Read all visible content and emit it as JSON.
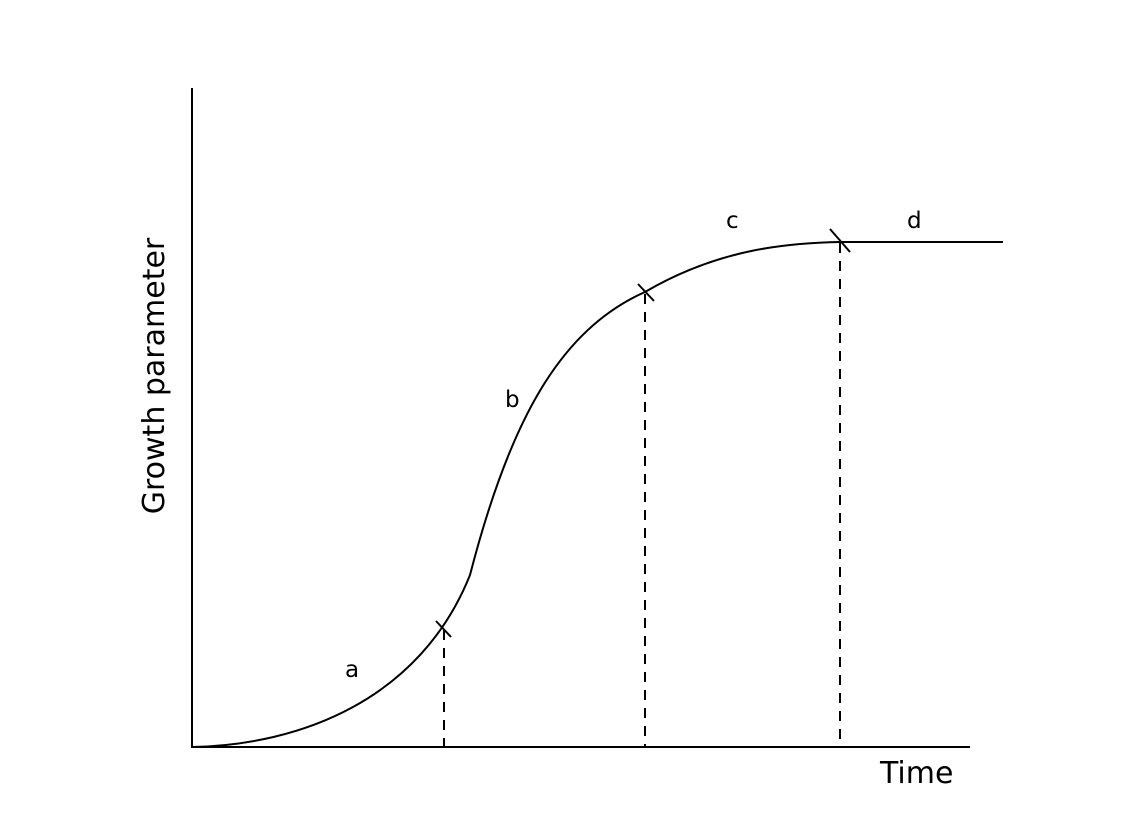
{
  "diagram": {
    "x_axis_label": "Time",
    "y_axis_label": "Growth parameter",
    "phases": [
      {
        "id": "a",
        "label": "a"
      },
      {
        "id": "b",
        "label": "b"
      },
      {
        "id": "c",
        "label": "c"
      },
      {
        "id": "d",
        "label": "d"
      }
    ]
  }
}
